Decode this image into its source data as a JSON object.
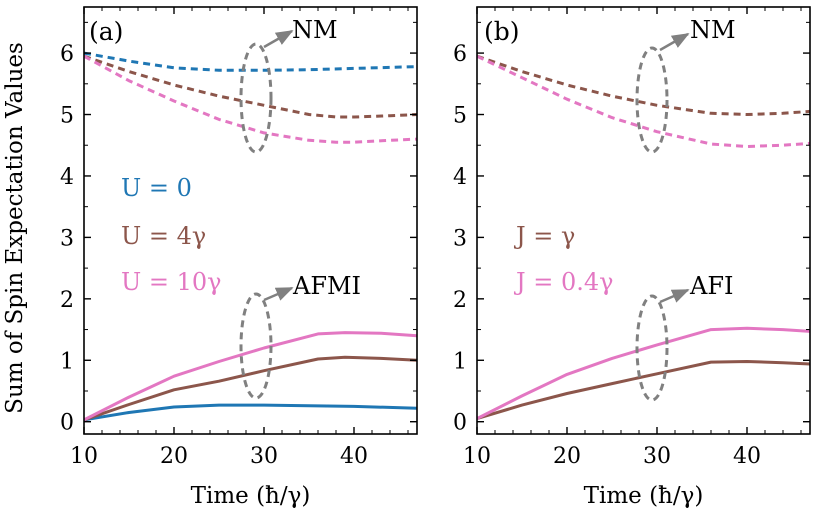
{
  "chart_data": [
    {
      "type": "line",
      "panel_label": "(a)",
      "xlabel": "Time (ħ/γ)",
      "ylabel": "Sum of Spin Expectation Values",
      "xlim": [
        10,
        47
      ],
      "ylim": [
        -0.2,
        6.75
      ],
      "xticks": [
        10,
        20,
        30,
        40
      ],
      "yticks": [
        0,
        1,
        2,
        3,
        4,
        5,
        6
      ],
      "legend": [
        "U = 0",
        "U = 4γ",
        "U = 10γ"
      ],
      "legend_colors": [
        "#1f77b4",
        "#8c564b",
        "#e377c2"
      ],
      "series": [
        {
          "name": "U = 0 (NM)",
          "group": "NM",
          "style": "dashed",
          "color": "#1f77b4",
          "x": [
            10,
            15,
            20,
            25,
            30,
            35,
            40,
            47
          ],
          "y": [
            6.0,
            5.87,
            5.76,
            5.72,
            5.72,
            5.73,
            5.75,
            5.78
          ]
        },
        {
          "name": "U = 4γ (NM)",
          "group": "NM",
          "style": "dashed",
          "color": "#8c564b",
          "x": [
            10,
            15,
            20,
            25,
            30,
            35,
            38,
            40,
            44,
            47
          ],
          "y": [
            5.95,
            5.7,
            5.48,
            5.3,
            5.15,
            5.0,
            4.96,
            4.96,
            4.98,
            5.0
          ]
        },
        {
          "name": "U = 10γ (NM)",
          "group": "NM",
          "style": "dashed",
          "color": "#e377c2",
          "x": [
            10,
            15,
            20,
            25,
            30,
            35,
            38,
            40,
            44,
            47
          ],
          "y": [
            5.95,
            5.55,
            5.22,
            4.92,
            4.7,
            4.58,
            4.55,
            4.55,
            4.58,
            4.6
          ]
        },
        {
          "name": "U = 0 (AFMI)",
          "group": "AFMI",
          "style": "solid",
          "color": "#1f77b4",
          "x": [
            10,
            15,
            20,
            25,
            30,
            35,
            40,
            47
          ],
          "y": [
            0.03,
            0.15,
            0.24,
            0.27,
            0.27,
            0.26,
            0.25,
            0.22
          ]
        },
        {
          "name": "U = 4γ (AFMI)",
          "group": "AFMI",
          "style": "solid",
          "color": "#8c564b",
          "x": [
            10,
            15,
            20,
            25,
            30,
            36,
            39,
            43,
            47
          ],
          "y": [
            0.03,
            0.28,
            0.52,
            0.66,
            0.83,
            1.02,
            1.05,
            1.03,
            1.0
          ]
        },
        {
          "name": "U = 10γ (AFMI)",
          "group": "AFMI",
          "style": "solid",
          "color": "#e377c2",
          "x": [
            10,
            15,
            20,
            25,
            30,
            36,
            39,
            43,
            47
          ],
          "y": [
            0.03,
            0.4,
            0.74,
            0.98,
            1.2,
            1.43,
            1.45,
            1.44,
            1.4
          ]
        }
      ],
      "annotations": [
        "NM",
        "AFMI"
      ]
    },
    {
      "type": "line",
      "panel_label": "(b)",
      "xlabel": "Time (ħ/γ)",
      "ylabel": "",
      "xlim": [
        10,
        47
      ],
      "ylim": [
        -0.2,
        6.75
      ],
      "xticks": [
        10,
        20,
        30,
        40
      ],
      "yticks": [
        0,
        1,
        2,
        3,
        4,
        5,
        6
      ],
      "legend": [
        "J = γ",
        "J = 0.4γ"
      ],
      "legend_colors": [
        "#8c564b",
        "#e377c2"
      ],
      "series": [
        {
          "name": "J = γ (NM)",
          "group": "NM",
          "style": "dashed",
          "color": "#8c564b",
          "x": [
            10,
            15,
            20,
            25,
            30,
            36,
            40,
            44,
            47
          ],
          "y": [
            5.95,
            5.7,
            5.48,
            5.3,
            5.15,
            5.02,
            5.0,
            5.02,
            5.05
          ]
        },
        {
          "name": "J = 0.4γ (NM)",
          "group": "NM",
          "style": "dashed",
          "color": "#e377c2",
          "x": [
            10,
            15,
            20,
            25,
            30,
            36,
            40,
            44,
            47
          ],
          "y": [
            5.95,
            5.6,
            5.25,
            4.95,
            4.72,
            4.52,
            4.48,
            4.5,
            4.53
          ]
        },
        {
          "name": "J = γ (AFI)",
          "group": "AFI",
          "style": "solid",
          "color": "#8c564b",
          "x": [
            10,
            15,
            20,
            25,
            30,
            36,
            40,
            44,
            47
          ],
          "y": [
            0.05,
            0.27,
            0.46,
            0.62,
            0.78,
            0.97,
            0.98,
            0.96,
            0.94
          ]
        },
        {
          "name": "J = 0.4γ (AFI)",
          "group": "AFI",
          "style": "solid",
          "color": "#e377c2",
          "x": [
            10,
            15,
            20,
            25,
            30,
            36,
            40,
            44,
            47
          ],
          "y": [
            0.05,
            0.42,
            0.77,
            1.03,
            1.25,
            1.5,
            1.52,
            1.5,
            1.47
          ]
        }
      ],
      "annotations": [
        "NM",
        "AFI"
      ]
    }
  ]
}
